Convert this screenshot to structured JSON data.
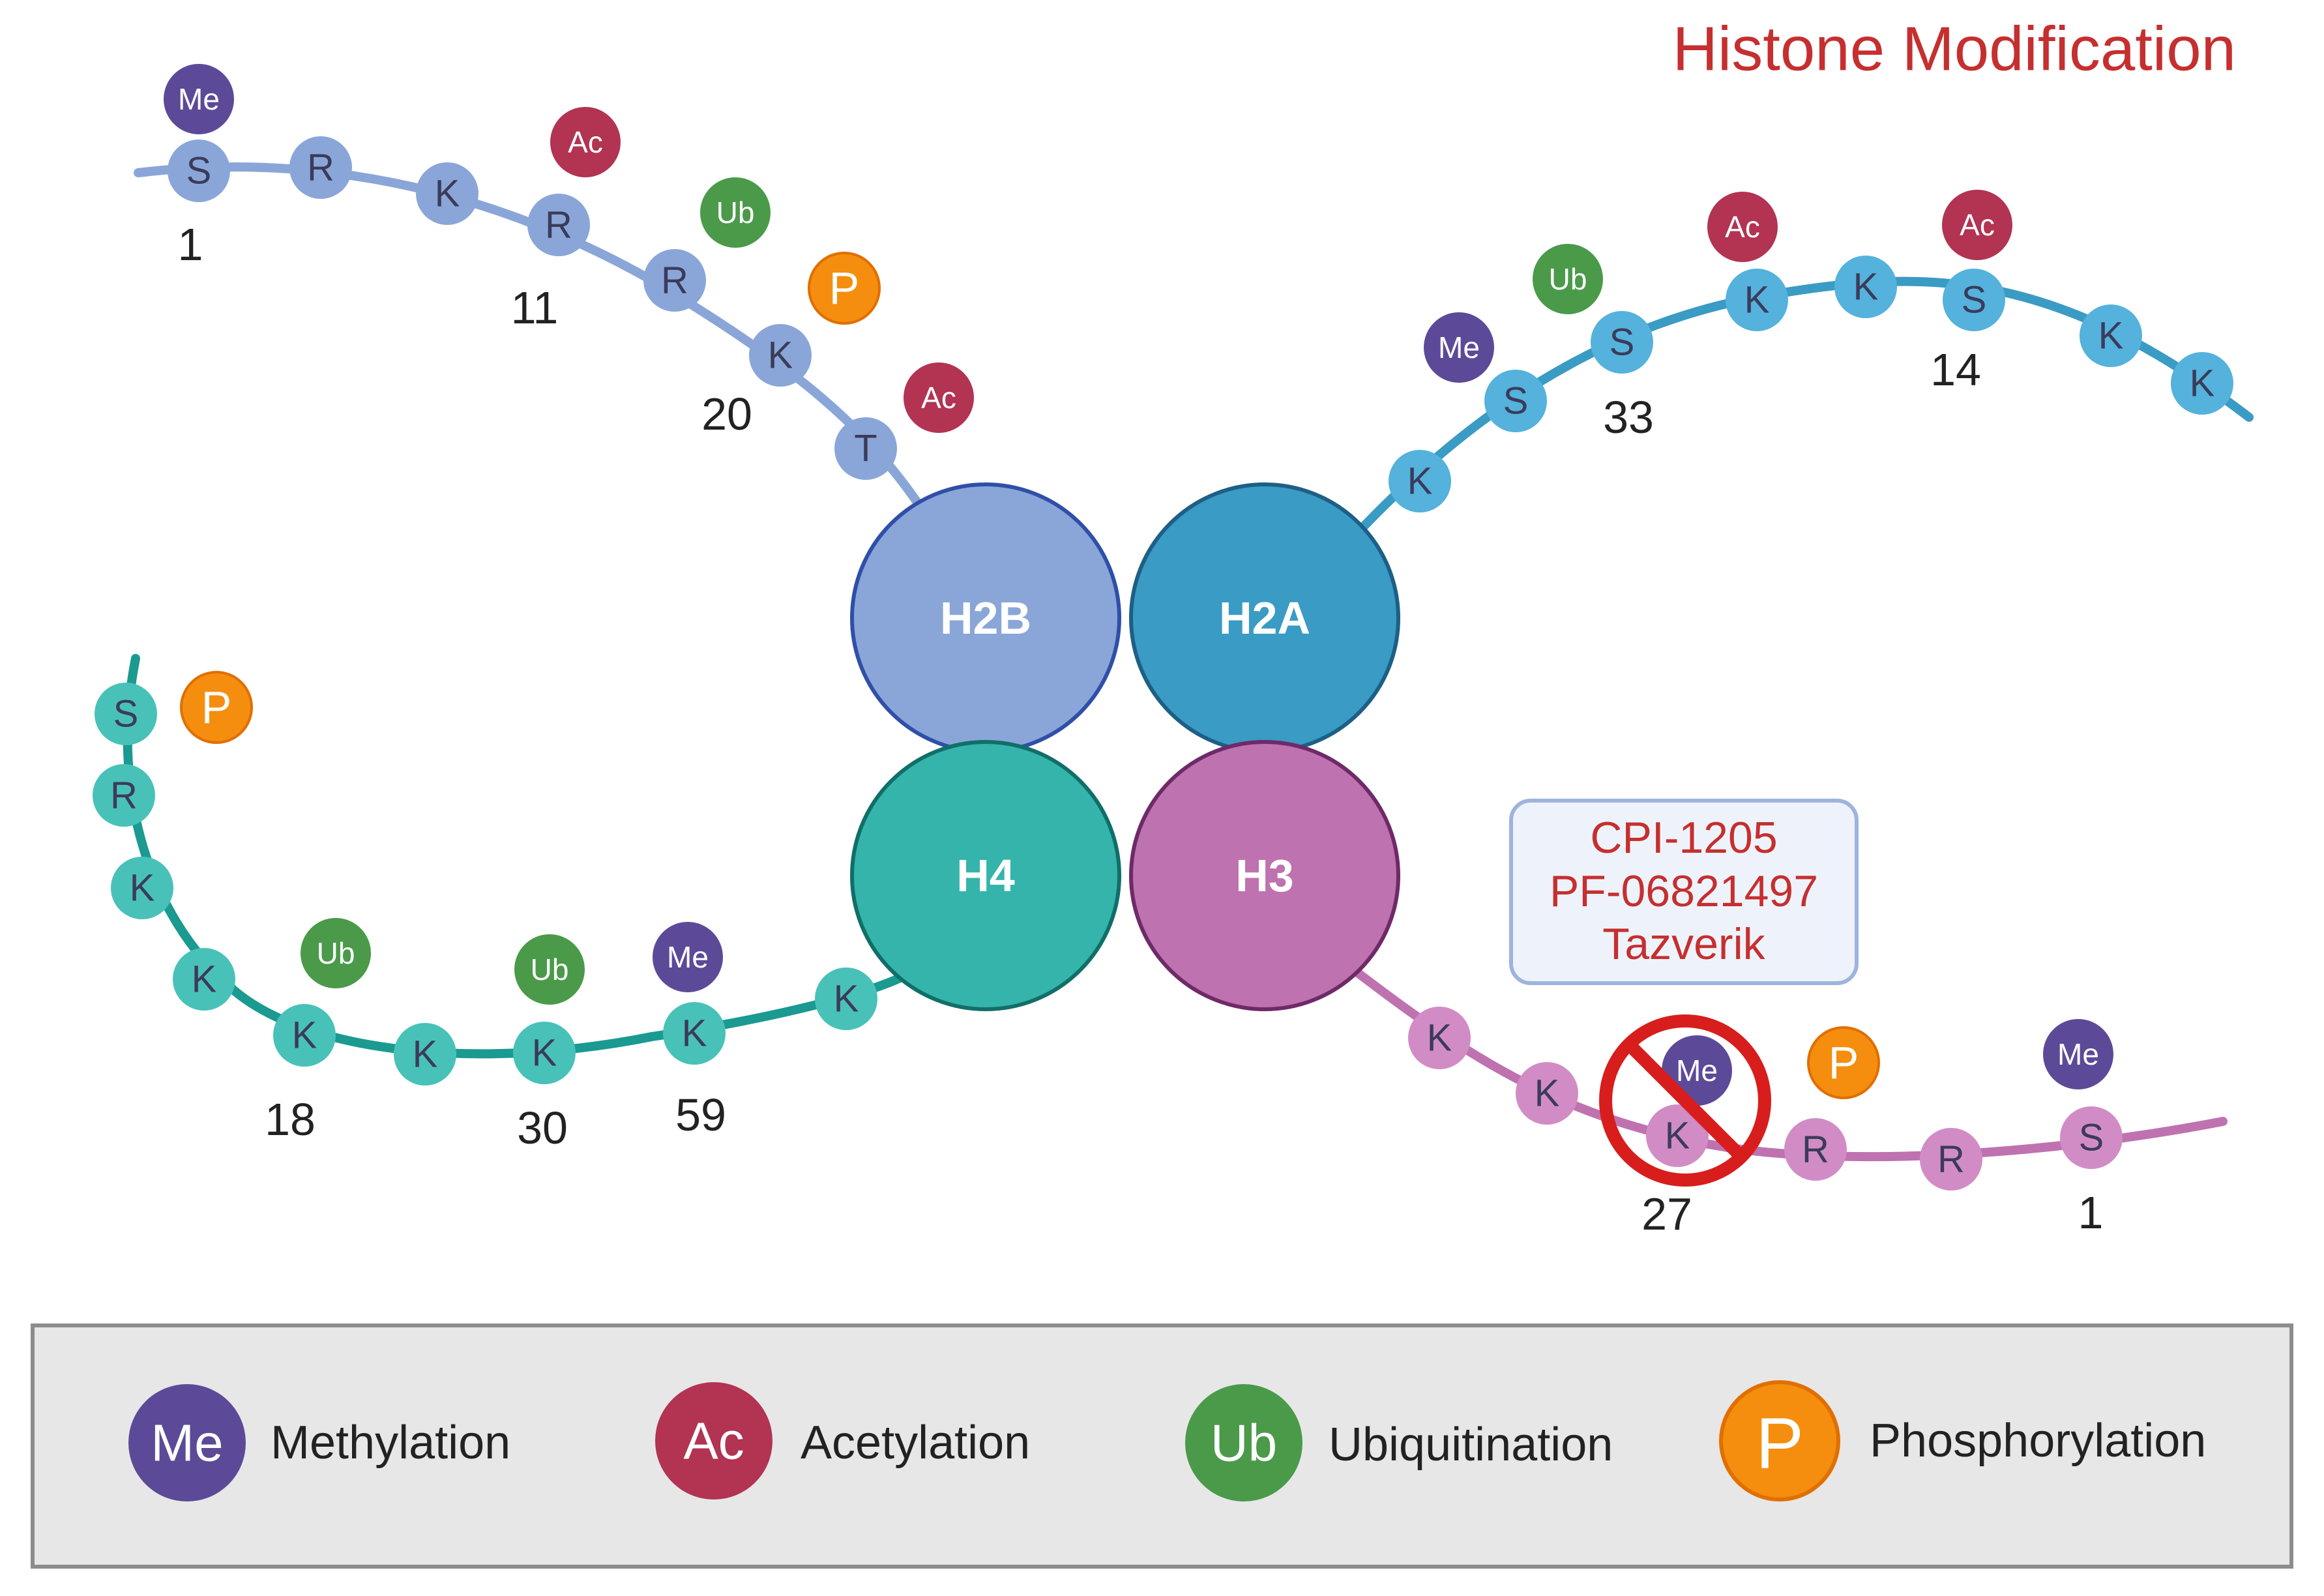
{
  "title": "Histone Modification",
  "core": {
    "h2b": "H2B",
    "h2a": "H2A",
    "h4": "H4",
    "h3": "H3"
  },
  "colors": {
    "h2b": "#8aa6d8",
    "h2a": "#3a9bc4",
    "h4": "#35b4ab",
    "h3": "#bf72b0",
    "me": "#5c4a98",
    "ac": "#b23352",
    "ub": "#4a9a4a",
    "p": "#f58e0e"
  },
  "tails": {
    "h2b": {
      "residues": [
        "S",
        "R",
        "K",
        "R",
        "R",
        "K",
        "T"
      ],
      "numbers": [
        "1",
        "11",
        "20"
      ],
      "mods": [
        "Me",
        "Ac",
        "Ub",
        "P",
        "Ac"
      ]
    },
    "h2a": {
      "residues": [
        "K",
        "S",
        "S",
        "K",
        "K",
        "S",
        "K",
        "K"
      ],
      "numbers": [
        "33",
        "14"
      ],
      "mods": [
        "Me",
        "Ub",
        "Ac",
        "Ac"
      ]
    },
    "h4": {
      "residues": [
        "S",
        "R",
        "K",
        "K",
        "K",
        "K",
        "K",
        "K",
        "K"
      ],
      "numbers": [
        "18",
        "30",
        "59"
      ],
      "mods": [
        "P",
        "Ub",
        "Ub",
        "Me"
      ]
    },
    "h3": {
      "residues": [
        "K",
        "K",
        "K",
        "R",
        "R",
        "S"
      ],
      "numbers": [
        "27",
        "1"
      ],
      "mods": [
        "Me",
        "P",
        "Me"
      ]
    }
  },
  "inhibitors": [
    "CPI-1205",
    "PF-06821497",
    "Tazverik"
  ],
  "legend": [
    {
      "symbol": "Me",
      "label": "Methylation"
    },
    {
      "symbol": "Ac",
      "label": "Acetylation"
    },
    {
      "symbol": "Ub",
      "label": "Ubiquitination"
    },
    {
      "symbol": "P",
      "label": "Phosphorylation"
    }
  ]
}
